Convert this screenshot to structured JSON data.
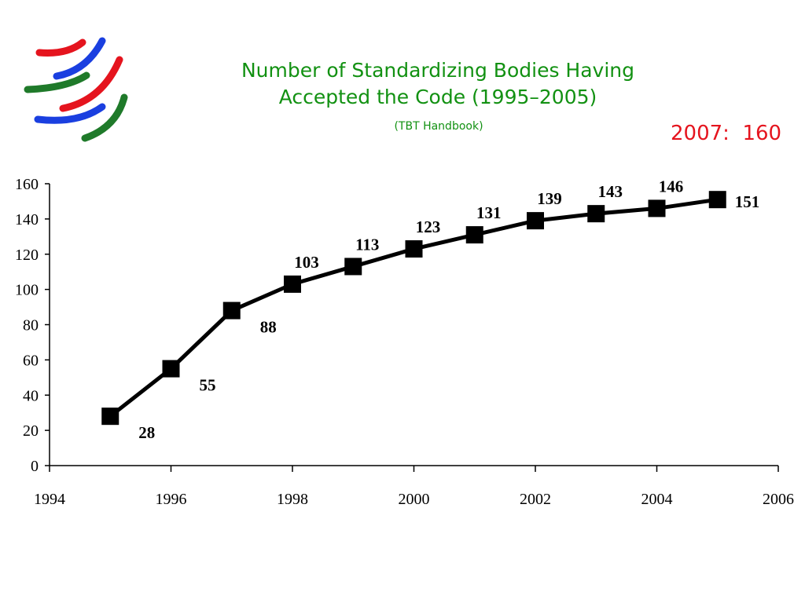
{
  "title_line1": "Number of Standardizing Bodies Having",
  "title_line2": "Accepted the Code (1995–2005)",
  "subtitle": "(TBT Handbook)",
  "note": "2007:  160",
  "colors": {
    "title": "#129112",
    "note": "#e5141e",
    "logo_red": "#e5141e",
    "logo_blue": "#1a3fe0",
    "logo_green": "#1f7a2a",
    "series": "#000000"
  },
  "logo_icon": "wto-globe-logo",
  "chart_data": {
    "type": "line",
    "title": "Number of Standardizing Bodies Having Accepted the Code (1995–2005)",
    "xlabel": "",
    "ylabel": "",
    "xlim": [
      1994,
      2006
    ],
    "ylim": [
      0,
      160
    ],
    "xticks": [
      1994,
      1996,
      1998,
      2000,
      2002,
      2004,
      2006
    ],
    "yticks": [
      0,
      20,
      40,
      60,
      80,
      100,
      120,
      140,
      160
    ],
    "grid": false,
    "legend": "none",
    "marker": "square",
    "series": [
      {
        "x": [
          1995,
          1996,
          1997,
          1998,
          1999,
          2000,
          2001,
          2002,
          2003,
          2004,
          2005
        ],
        "y": [
          28,
          55,
          88,
          103,
          113,
          123,
          131,
          139,
          143,
          146,
          151
        ],
        "labels": [
          "28",
          "55",
          "88",
          "103",
          "113",
          "123",
          "131",
          "139",
          "143",
          "146",
          "151"
        ]
      }
    ]
  }
}
